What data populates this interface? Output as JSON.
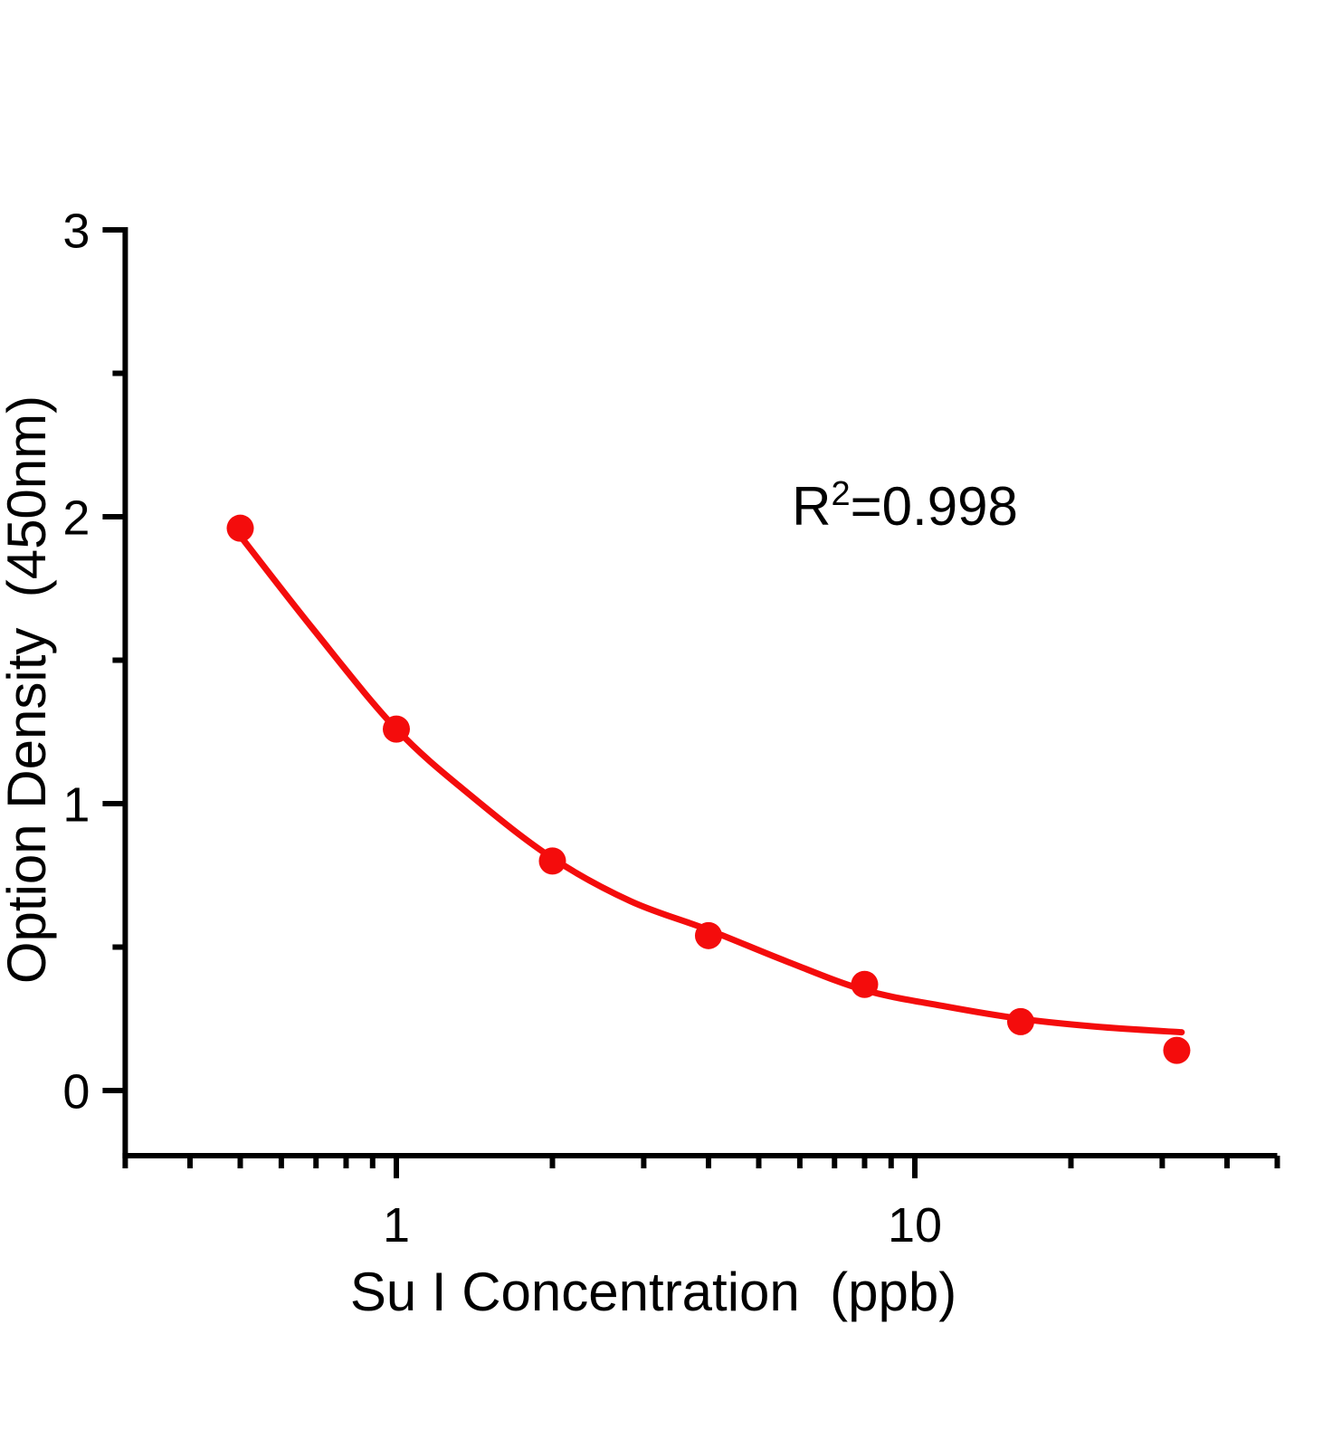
{
  "chart_data": {
    "type": "scatter",
    "title": "",
    "xlabel": "Su I Concentration  (ppb)",
    "ylabel": "Option Density  (450nm)",
    "x_scale": "log",
    "y_scale": "linear",
    "xlim": [
      0.3,
      50
    ],
    "ylim": [
      -0.22,
      3
    ],
    "grid": false,
    "legend": "none",
    "x_major_ticks": [
      1,
      10
    ],
    "x_major_tick_labels": [
      "1",
      "10"
    ],
    "x_minor_ticks": [
      0.3,
      0.4,
      0.5,
      0.6,
      0.7,
      0.8,
      0.9,
      2,
      3,
      4,
      5,
      6,
      7,
      8,
      9,
      20,
      30,
      40,
      50
    ],
    "y_major_ticks": [
      0,
      1,
      2,
      3
    ],
    "y_major_tick_labels": [
      "0",
      "1",
      "2",
      "3"
    ],
    "y_minor_ticks": [
      0.5,
      1.5,
      2.5
    ],
    "series": [
      {
        "name": "standard-curve-points",
        "marker": "circle",
        "color": "#f40c0c",
        "x": [
          0.5,
          1,
          2,
          4,
          8,
          16,
          32
        ],
        "y": [
          1.96,
          1.26,
          0.8,
          0.54,
          0.37,
          0.24,
          0.14
        ]
      }
    ],
    "fit_curve": {
      "name": "4pl-fit-line",
      "color": "#f40c0c",
      "points": [
        [
          0.487,
          1.96
        ],
        [
          0.69,
          1.61
        ],
        [
          1.0,
          1.26
        ],
        [
          1.41,
          1.02
        ],
        [
          2.0,
          0.81
        ],
        [
          2.83,
          0.66
        ],
        [
          4.0,
          0.56
        ],
        [
          5.66,
          0.45
        ],
        [
          8.0,
          0.35
        ],
        [
          11.3,
          0.295
        ],
        [
          16.0,
          0.25
        ],
        [
          22.6,
          0.222
        ],
        [
          32.7,
          0.203
        ]
      ]
    },
    "annotation": {
      "base": "R",
      "sup": "2",
      "rest": "=0.998"
    },
    "colors": {
      "data": "#f40c0c",
      "axis": "#000000",
      "background": "#ffffff"
    }
  }
}
